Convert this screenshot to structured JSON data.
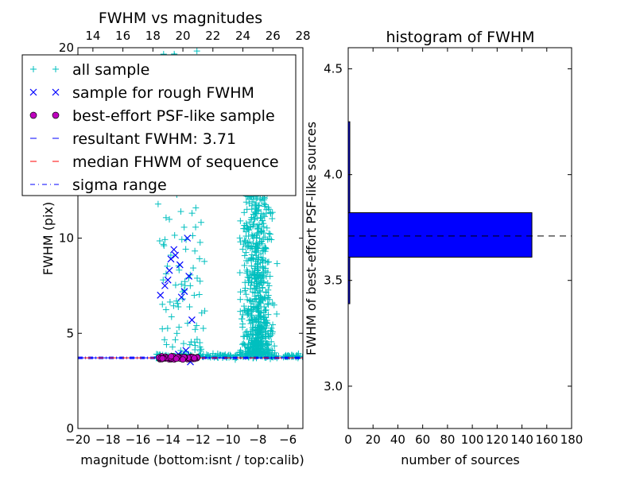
{
  "chart_data": [
    {
      "type": "scatter",
      "title": "FWHM vs magnitudes",
      "xlabel": "magnitude (bottom:isnt / top:calib)",
      "ylabel": "FWHM (pix)",
      "xlim": [
        -20,
        -5
      ],
      "ylim": [
        0,
        20
      ],
      "top_xlim": [
        13,
        28
      ],
      "x_ticks": [
        -20,
        -18,
        -16,
        -14,
        -12,
        -10,
        -8,
        -6
      ],
      "x_tick_labels": [
        "−20",
        "−18",
        "−16",
        "−14",
        "−12",
        "−10",
        "−8",
        "−6"
      ],
      "y_ticks": [
        0,
        5,
        10,
        20
      ],
      "y_tick_labels": [
        "0",
        "5",
        "10",
        "20"
      ],
      "top_ticks": [
        14,
        16,
        18,
        20,
        22,
        24,
        26,
        28
      ],
      "top_tick_labels": [
        "14",
        "16",
        "18",
        "20",
        "22",
        "24",
        "26",
        "28"
      ],
      "legend_position": "top-left",
      "legend": [
        {
          "label": "all sample",
          "marker": "plus",
          "color": "#00bfbf"
        },
        {
          "label": "sample for rough FWHM",
          "marker": "x",
          "color": "#0000ff"
        },
        {
          "label": "best-effort PSF-like sample",
          "marker": "circle",
          "color": "#bf00bf"
        },
        {
          "label": "resultant FWHM: 3.71",
          "marker": "dashed",
          "color": "#0000ff"
        },
        {
          "label": "median FHWM of sequence",
          "marker": "dashed",
          "color": "#ff0000"
        },
        {
          "label": "sigma range",
          "marker": "dashdot",
          "color": "#0000ff"
        }
      ],
      "resultant_fwhm": 3.71,
      "median_fwhm": 3.71,
      "series": [
        {
          "name": "sample for rough FWHM",
          "marker": "x",
          "color": "#0000ff",
          "x": [
            -14.5,
            -13.6,
            -13.2,
            -13.9,
            -12.7,
            -12.4,
            -13.5,
            -12.9,
            -13.1,
            -12.6,
            -14.0,
            -13.3,
            -12.8,
            -14.2,
            -13.8,
            -12.5
          ],
          "y": [
            7.0,
            9.4,
            8.6,
            8.3,
            10.0,
            5.7,
            9.1,
            7.2,
            6.9,
            8.0,
            7.8,
            3.9,
            4.1,
            7.5,
            8.9,
            3.5
          ]
        }
      ]
    },
    {
      "type": "bar",
      "orientation": "horizontal",
      "title": "histogram of FWHM",
      "xlabel": "number of sources",
      "ylabel": "FWHM of best-effort PSF-like sources",
      "xlim": [
        0,
        180
      ],
      "ylim": [
        2.8,
        4.6
      ],
      "x_ticks": [
        0,
        20,
        40,
        60,
        80,
        100,
        120,
        140,
        160,
        180
      ],
      "y_ticks": [
        3.0,
        3.5,
        4.0,
        4.5
      ],
      "y_tick_labels": [
        "3.0",
        "3.5",
        "4.0",
        "4.5"
      ],
      "color": "#0000ff",
      "bins": [
        {
          "from": 3.39,
          "to": 3.61,
          "count": 1
        },
        {
          "from": 3.61,
          "to": 3.82,
          "count": 148
        },
        {
          "from": 3.82,
          "to": 4.25,
          "count": 1
        }
      ],
      "resultant_fwhm": 3.71
    }
  ]
}
